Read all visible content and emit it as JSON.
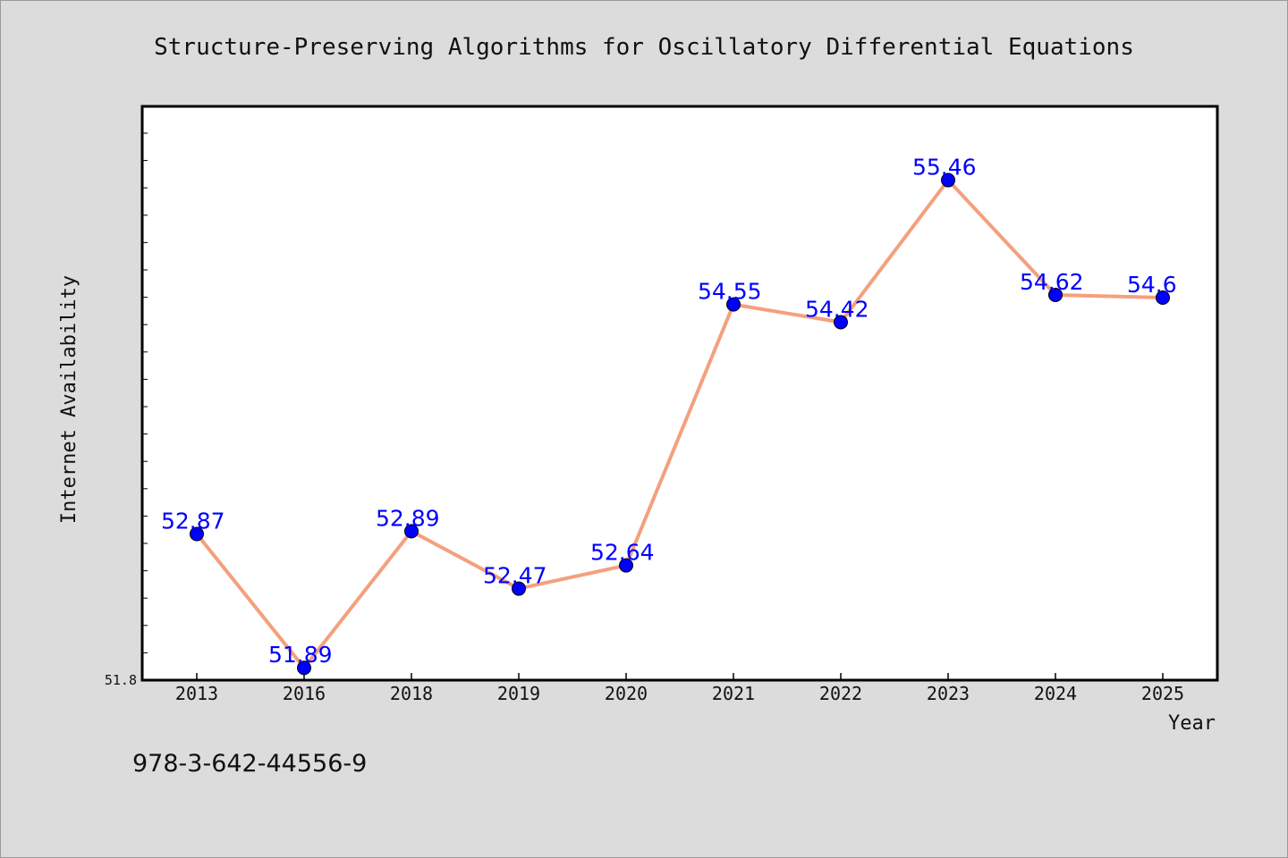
{
  "footer": {
    "isbn": "978-3-642-44556-9"
  },
  "chart_data": {
    "type": "line",
    "title": "Structure-Preserving Algorithms for Oscillatory Differential Equations",
    "xlabel": "Year",
    "ylabel": "Internet Availability",
    "categories": [
      "2013",
      "2016",
      "2018",
      "2019",
      "2020",
      "2021",
      "2022",
      "2023",
      "2024",
      "2025"
    ],
    "series": [
      {
        "values": [
          52.87,
          51.89,
          52.89,
          52.47,
          52.64,
          54.55,
          54.42,
          55.46,
          54.62,
          54.6
        ],
        "labels": [
          "52.87",
          "51.89",
          "52.89",
          "52.47",
          "52.64",
          "54.55",
          "54.42",
          "55.46",
          "54.62",
          "54.6"
        ]
      }
    ],
    "ylim": [
      51.8,
      56.0
    ],
    "yticks_labeled": [
      "51.8"
    ],
    "grid": false,
    "legend": "none",
    "colors": {
      "line": "#f4a07e",
      "marker": "#0000ff",
      "data_label": "#0000ff",
      "plot_background": "#ffffff",
      "figure_background": "#dcdcdc"
    }
  }
}
